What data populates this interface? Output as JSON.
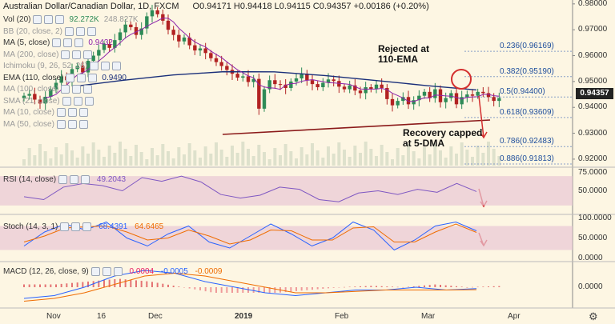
{
  "header": {
    "symbol": "Australian Dollar/Canadian Dollar, 1D, FXCM",
    "ohlc": "O0.94171 H0.94418 L0.94115 C0.94357 +0.00186 (+0.20%)"
  },
  "indicators": [
    {
      "label": "Vol (20)",
      "value": "92.272K",
      "value2": "248.827K",
      "faded": false
    },
    {
      "label": "BB (20, close, 2)",
      "value": "",
      "faded": true
    },
    {
      "label": "MA (5, close)",
      "value": "0.9432",
      "faded": false
    },
    {
      "label": "MA (200, close)",
      "value": "",
      "faded": true
    },
    {
      "label": "Ichimoku (9, 26, 52, 26)",
      "value": "",
      "faded": true
    },
    {
      "label": "EMA (110, close)",
      "value": "0.9490",
      "faded": false
    },
    {
      "label": "MA (100, close)",
      "value": "",
      "faded": true
    },
    {
      "label": "SMA (21, close)",
      "value": "",
      "faded": true
    },
    {
      "label": "MA (10, close)",
      "value": "",
      "faded": true
    },
    {
      "label": "MA (50, close)",
      "value": "",
      "faded": true
    }
  ],
  "annotations": {
    "rejected": "Rejected at\n110-EMA",
    "recovery": "Recovery capped\nat 5-DMA"
  },
  "fib_levels": [
    {
      "label": "0.236(0.96169)",
      "price": 0.96169
    },
    {
      "label": "0.382(0.95190)",
      "price": 0.9519
    },
    {
      "label": "0.5(0.94400)",
      "price": 0.944
    },
    {
      "label": "0.618(0.93609)",
      "price": 0.93609
    },
    {
      "label": "0.786(0.92483)",
      "price": 0.92483
    },
    {
      "label": "0.886(0.91813)",
      "price": 0.91813
    }
  ],
  "last_price": "0.94357",
  "price_axis": [
    "0.98000",
    "0.97000",
    "0.96000",
    "0.95000",
    "0.94000",
    "0.93000",
    "0.92000"
  ],
  "rsi": {
    "label": "RSI (14, close)",
    "value": "49.2043",
    "axis": [
      "75.0000",
      "50.0000",
      "25.0000"
    ]
  },
  "stoch": {
    "label": "Stoch (14, 3, 1)",
    "k": "68.4391",
    "d": "64.6465",
    "axis": [
      "100.0000",
      "50.0000",
      "0.0000"
    ]
  },
  "macd": {
    "label": "MACD (12, 26, close, 9)",
    "hist": "0.0004",
    "macd": "-0.0005",
    "signal": "-0.0009",
    "axis": [
      "0.0000"
    ]
  },
  "time_axis": [
    "Nov",
    "16",
    "Dec",
    "2019",
    "Feb",
    "Mar",
    "Apr"
  ],
  "colors": {
    "bg": "#fdf6e3",
    "up": "#2e8b57",
    "down": "#b22222",
    "ema": "#1a2f7a",
    "ma5": "#8e24aa",
    "trend": "#8b1a1a",
    "rsi": "#7e57c2",
    "stochK": "#2962ff",
    "stochD": "#ef6c00",
    "arrow": "#d32f2f"
  },
  "chart_data": {
    "type": "candlestick",
    "title": "Australian Dollar/Canadian Dollar, 1D, FXCM",
    "ylim": [
      0.915,
      0.982
    ],
    "series": [
      {
        "name": "AUD/CAD daily close (approx.)",
        "values": [
          0.9445,
          0.9452,
          0.943,
          0.9415,
          0.9441,
          0.947,
          0.9495,
          0.952,
          0.9505,
          0.9548,
          0.956,
          0.9535,
          0.958,
          0.96,
          0.9622,
          0.9645,
          0.963,
          0.966,
          0.969,
          0.972,
          0.971,
          0.968,
          0.9705,
          0.9752,
          0.9775,
          0.976,
          0.9735,
          0.97,
          0.968,
          0.9655,
          0.967,
          0.964,
          0.962,
          0.9628,
          0.961,
          0.959,
          0.9575,
          0.956,
          0.9545,
          0.953,
          0.9515,
          0.952,
          0.9498,
          0.951,
          0.9395,
          0.947,
          0.9505,
          0.949,
          0.9488,
          0.9475,
          0.95,
          0.9512,
          0.953,
          0.9505,
          0.949,
          0.9478,
          0.9495,
          0.9508,
          0.9502,
          0.948,
          0.947,
          0.9485,
          0.9465,
          0.9455,
          0.9478,
          0.947,
          0.9488,
          0.9475,
          0.9432,
          0.9408,
          0.9425,
          0.944,
          0.9412,
          0.9428,
          0.9445,
          0.946,
          0.9436,
          0.947,
          0.942,
          0.9436,
          0.9455,
          0.9412,
          0.944,
          0.945,
          0.9445,
          0.946,
          0.9455,
          0.944,
          0.9425,
          0.9436
        ]
      },
      {
        "name": "EMA (110, close)",
        "values": [
          0.948,
          0.949,
          0.95,
          0.9508,
          0.951,
          0.9505,
          0.95,
          0.9495,
          0.949
        ]
      },
      {
        "name": "RSI (14, close)",
        "values": [
          42,
          38,
          55,
          60,
          57,
          50,
          68,
          63,
          70,
          62,
          45,
          40,
          44,
          55,
          52,
          38,
          35,
          47,
          50,
          45,
          52,
          48,
          60,
          49
        ]
      },
      {
        "name": "Stoch %K",
        "values": [
          30,
          65,
          85,
          70,
          90,
          50,
          30,
          60,
          80,
          40,
          25,
          55,
          85,
          60,
          30,
          50,
          90,
          70,
          20,
          45,
          80,
          90,
          68
        ]
      },
      {
        "name": "Stoch %D",
        "values": [
          40,
          55,
          75,
          78,
          80,
          65,
          45,
          50,
          70,
          55,
          35,
          45,
          70,
          68,
          45,
          45,
          75,
          78,
          40,
          40,
          65,
          85,
          64
        ]
      },
      {
        "name": "MACD",
        "values": [
          -0.004,
          -0.003,
          0.0,
          0.004,
          0.006,
          0.005,
          0.002,
          0.0,
          -0.002,
          -0.003,
          -0.002,
          -0.001,
          -0.001,
          0.0,
          -0.001,
          -0.0005
        ]
      },
      {
        "name": "Signal",
        "values": [
          -0.005,
          -0.004,
          -0.002,
          0.001,
          0.004,
          0.005,
          0.004,
          0.002,
          0.0,
          -0.002,
          -0.002,
          -0.0015,
          -0.001,
          -0.001,
          -0.001,
          -0.0009
        ]
      }
    ]
  }
}
